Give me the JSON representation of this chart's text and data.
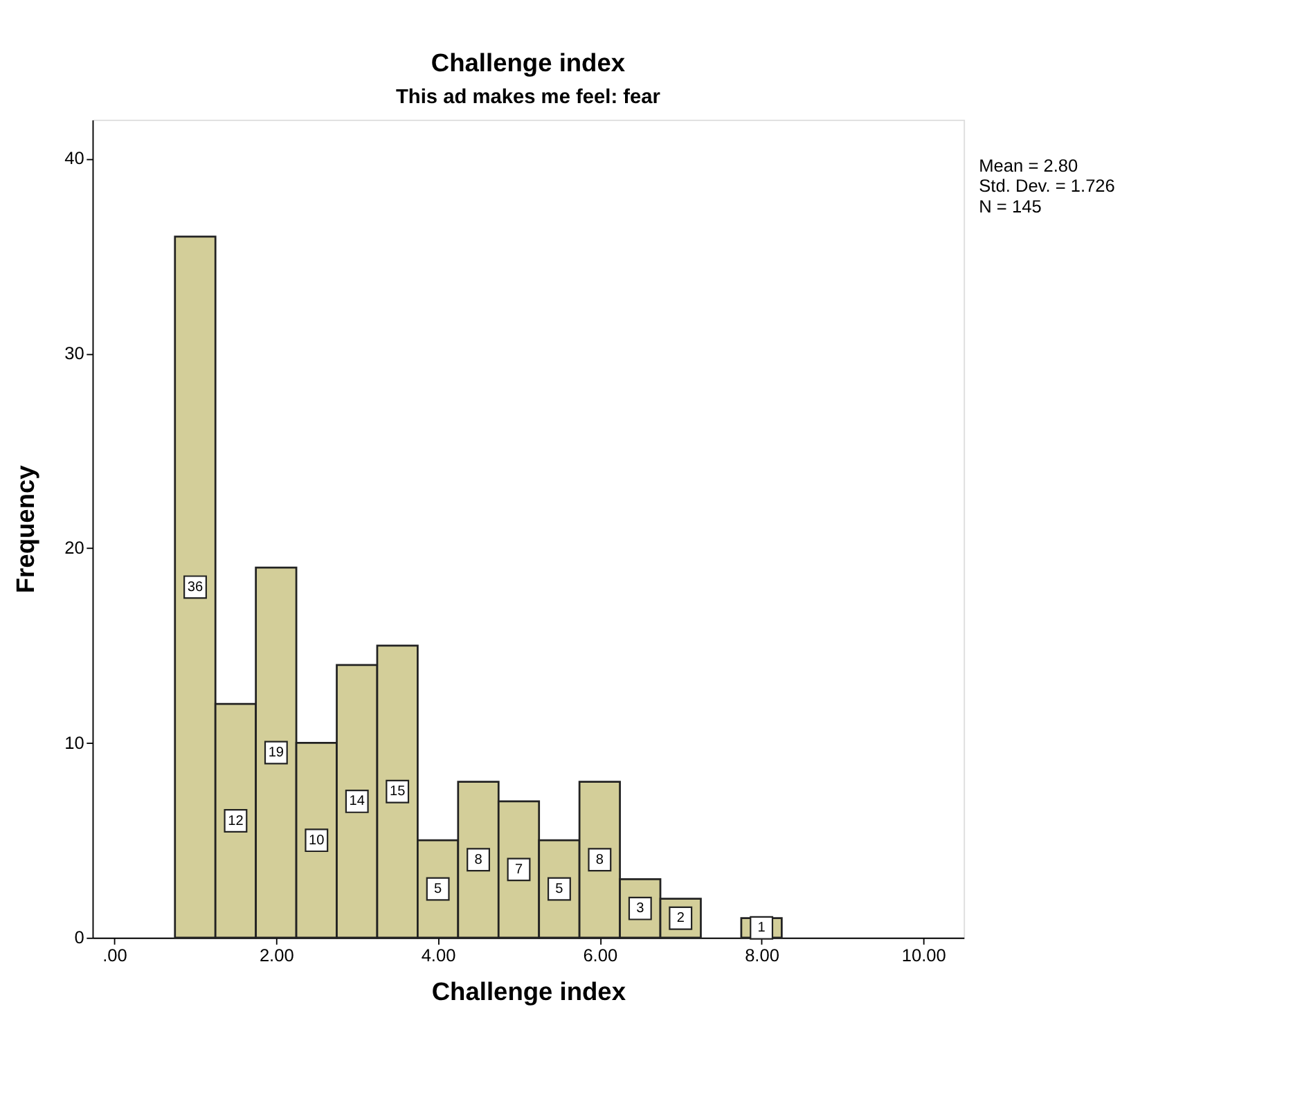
{
  "chart_data": {
    "type": "histogram",
    "title": "Challenge index",
    "subtitle": "This ad makes me feel: fear",
    "xlabel": "Challenge index",
    "ylabel": "Frequency",
    "bins": [
      0.75,
      1.25,
      1.75,
      2.25,
      2.75,
      3.25,
      3.75,
      4.25,
      4.75,
      5.25,
      5.75,
      6.25,
      6.75,
      7.25,
      7.75,
      8.25
    ],
    "values": [
      36,
      12,
      19,
      10,
      14,
      15,
      5,
      8,
      7,
      5,
      8,
      3,
      2,
      0,
      1
    ],
    "value_labels": [
      "36",
      "12",
      "19",
      "10",
      "14",
      "15",
      "5",
      "8",
      "7",
      "5",
      "8",
      "3",
      "2",
      null,
      "1"
    ],
    "color": "#d3ce99",
    "xlim": [
      -0.27,
      10.5
    ],
    "xticks": [
      {
        "value": 0,
        "label": ".00"
      },
      {
        "value": 2,
        "label": "2.00"
      },
      {
        "value": 4,
        "label": "4.00"
      },
      {
        "value": 6,
        "label": "6.00"
      },
      {
        "value": 8,
        "label": "8.00"
      },
      {
        "value": 10,
        "label": "10.00"
      }
    ],
    "ylim": [
      0,
      42
    ],
    "yticks": [
      0,
      10,
      20,
      30,
      40
    ],
    "grid": false,
    "annotations": [
      "Mean = 2.80",
      "Std. Dev. = 1.726",
      "N = 145"
    ]
  }
}
